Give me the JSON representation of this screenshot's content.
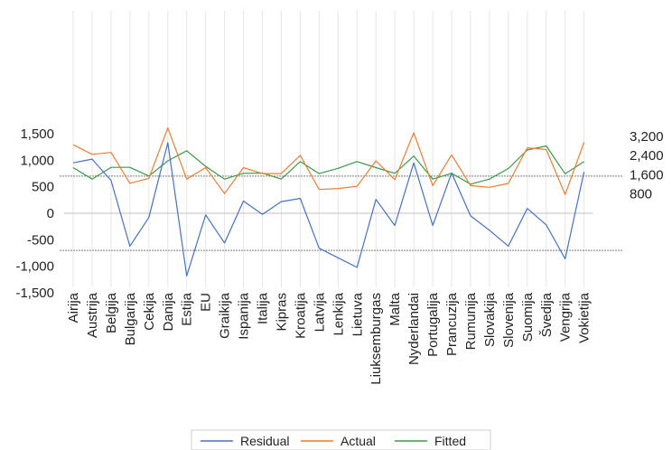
{
  "chart_data": {
    "type": "line",
    "categories": [
      "Airija",
      "Austrija",
      "Belgija",
      "Bulgarija",
      "Cekija",
      "Danija",
      "Estija",
      "EU",
      "Graikija",
      "Ispanija",
      "Italija",
      "Kipras",
      "Kroatija",
      "Latvija",
      "Lenkija",
      "Lietuva",
      "Liuksemburgas",
      "Malta",
      "Nyderlandai",
      "Portugalija",
      "Prancuzija",
      "Rumunija",
      "Slovakija",
      "Slovenija",
      "Suomija",
      "Švedija",
      "Vengrija",
      "Vokietija"
    ],
    "series": [
      {
        "name": "Residual",
        "axis": "left",
        "values": [
          950,
          1020,
          620,
          -620,
          -80,
          1330,
          -1180,
          -30,
          -560,
          230,
          -20,
          220,
          280,
          -660,
          -840,
          -1020,
          260,
          -230,
          950,
          -230,
          760,
          -50,
          -320,
          -620,
          90,
          -220,
          -860,
          780
        ]
      },
      {
        "name": "Actual",
        "axis": "right",
        "values": [
          2850,
          2450,
          2530,
          1250,
          1450,
          3550,
          1420,
          1900,
          820,
          1900,
          1650,
          1650,
          2410,
          990,
          1030,
          1120,
          2180,
          1400,
          3350,
          1150,
          2430,
          1150,
          1080,
          1240,
          2720,
          2650,
          780,
          2950
        ]
      },
      {
        "name": "Fitted",
        "axis": "right",
        "values": [
          1900,
          1420,
          1910,
          1910,
          1550,
          2180,
          2600,
          1950,
          1420,
          1660,
          1670,
          1420,
          2150,
          1650,
          1870,
          2150,
          1900,
          1660,
          2380,
          1420,
          1660,
          1210,
          1420,
          1860,
          2630,
          2800,
          1640,
          2150
        ]
      }
    ],
    "left_axis": {
      "ylim": [
        -1500,
        1500
      ],
      "ticks": [
        -1500,
        -1000,
        -500,
        0,
        500,
        1000,
        1500
      ],
      "tick_labels": [
        "-1,500",
        "-1,000",
        "-500",
        "0",
        "500",
        "1,000",
        "1,500"
      ]
    },
    "right_axis": {
      "ylim": [
        0,
        3600
      ],
      "ticks": [
        800,
        1600,
        2400,
        3200
      ],
      "tick_labels": [
        "800",
        "1,600",
        "2,400",
        "3,200"
      ]
    },
    "band_lines": [
      -700,
      700
    ],
    "zero_line": 0,
    "legend": {
      "position": "bottom",
      "entries": [
        "Residual",
        "Actual",
        "Fitted"
      ]
    },
    "colors": {
      "Residual": "#4472c4",
      "Actual": "#ed7d31",
      "Fitted": "#3a9a48",
      "grid": "#e6e6e6",
      "band": "#7f7f7f",
      "zero": "#bfbfbf"
    },
    "grid": true
  }
}
